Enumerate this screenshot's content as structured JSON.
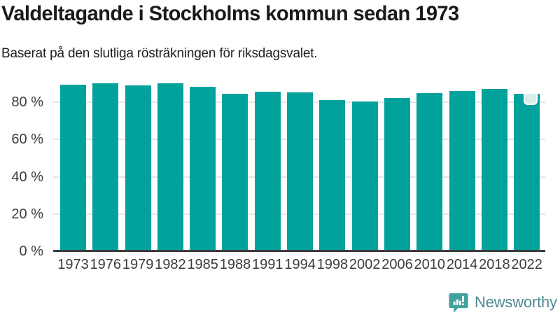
{
  "header": {
    "title": "Valdeltagande i Stockholms kommun sedan 1973",
    "subtitle": "Baserat på den slutliga rösträkningen för riksdagsvalet."
  },
  "chart_data": {
    "type": "bar",
    "title": "Valdeltagande i Stockholms kommun sedan 1973",
    "subtitle": "Baserat på den slutliga rösträkningen för riksdagsvalet.",
    "categories": [
      "1973",
      "1976",
      "1979",
      "1982",
      "1985",
      "1988",
      "1991",
      "1994",
      "1998",
      "2002",
      "2006",
      "2010",
      "2014",
      "2018",
      "2022"
    ],
    "values": [
      89.3,
      90.3,
      89.0,
      90.3,
      88.5,
      84.7,
      85.7,
      85.2,
      81.2,
      80.6,
      82.5,
      84.9,
      86.2,
      87.2,
      84.7
    ],
    "unit": "%",
    "xlabel": "",
    "ylabel": "",
    "ylim": [
      0,
      100
    ],
    "yticks": [
      0,
      20,
      40,
      60,
      80
    ],
    "ytick_labels": [
      "0 %",
      "20 %",
      "40 %",
      "60 %",
      "80 %"
    ],
    "grid": true,
    "legend": false,
    "bar_color": "#00a29b",
    "highlight": {
      "category": "2022",
      "style": "notch-marker",
      "notch_color": "#d9ece9"
    }
  },
  "footer": {
    "brand": "Newsworthy"
  },
  "colors": {
    "bar": "#00a29b",
    "grid": "#e4e4e4",
    "axis_line": "#3d3d3d",
    "axis_text": "#3c3c3c",
    "title_text": "#1a1a1a",
    "logo_teal": "#42a39d",
    "brand_text": "#4d8b93"
  },
  "icons": {
    "logo": "newsworthy-bar-chart-speech-bubble-icon"
  }
}
